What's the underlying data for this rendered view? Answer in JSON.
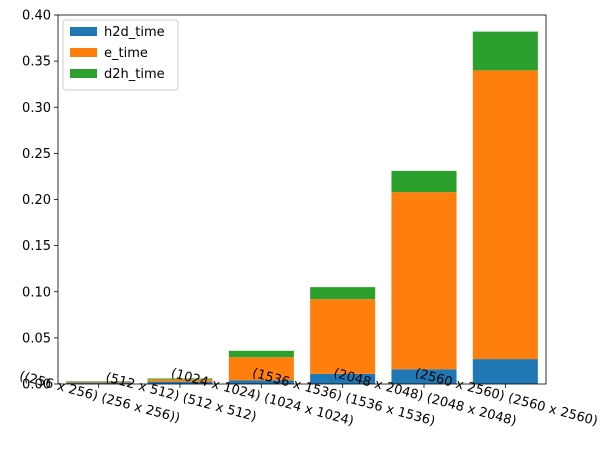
{
  "chart_data": {
    "type": "bar",
    "stacked": true,
    "categories": [
      "((256 x 256) (256 x 256))",
      "(512 x 512) (512 x 512)",
      "(1024 x 1024) (1024 x 1024)",
      "(1536 x 1536) (1536 x 1536)",
      "(2048 x 2048) (2048 x 2048)",
      "(2560 x 2560) (2560 x 2560)"
    ],
    "series": [
      {
        "name": "h2d_time",
        "color": "#1f77b4",
        "values": [
          0.0015,
          0.0025,
          0.004,
          0.011,
          0.016,
          0.027
        ]
      },
      {
        "name": "e_time",
        "color": "#ff7f0e",
        "values": [
          0.001,
          0.0025,
          0.025,
          0.081,
          0.192,
          0.313
        ]
      },
      {
        "name": "d2h_time",
        "color": "#2ca02c",
        "values": [
          0.0005,
          0.001,
          0.007,
          0.013,
          0.023,
          0.042
        ]
      }
    ],
    "title": "",
    "xlabel": "",
    "ylabel": "",
    "ylim": [
      0,
      0.4
    ],
    "yticks": [
      "0.00",
      "0.05",
      "0.10",
      "0.15",
      "0.20",
      "0.25",
      "0.30",
      "0.35",
      "0.40"
    ],
    "grid": false,
    "legend_position": "top-left",
    "xtick_rotation": -15
  }
}
